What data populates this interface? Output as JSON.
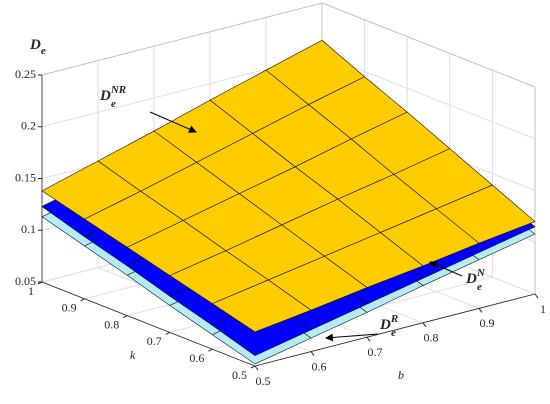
{
  "chart_data": {
    "type": "surface3d",
    "xlabel": "b",
    "ylabel": "k",
    "zlabel": {
      "base": "D",
      "sub": "e"
    },
    "x": [
      0.5,
      0.6,
      0.7,
      0.8,
      0.9,
      1
    ],
    "y": [
      0.5,
      0.6,
      0.7,
      0.8,
      0.9,
      1
    ],
    "xlim": [
      0.5,
      1
    ],
    "ylim": [
      0.5,
      1
    ],
    "zlim": [
      0.05,
      0.25
    ],
    "xticks": [
      0.5,
      0.6,
      0.7,
      0.8,
      0.9,
      1
    ],
    "yticks": [
      0.5,
      0.6,
      0.7,
      0.8,
      0.9,
      1
    ],
    "zticks": [
      0.05,
      0.1,
      0.15,
      0.2,
      0.25
    ],
    "grid": true,
    "series": [
      {
        "label": {
          "base": "D",
          "sub": "e",
          "sup": "R"
        },
        "color": "#b3ecf7",
        "z": [
          [
            0.052,
            0.063,
            0.074,
            0.086,
            0.097,
            0.108
          ],
          [
            0.064,
            0.076,
            0.088,
            0.099,
            0.111,
            0.122
          ],
          [
            0.076,
            0.088,
            0.101,
            0.113,
            0.125,
            0.137
          ],
          [
            0.089,
            0.101,
            0.114,
            0.126,
            0.139,
            0.151
          ],
          [
            0.101,
            0.114,
            0.127,
            0.14,
            0.153,
            0.166
          ],
          [
            0.113,
            0.126,
            0.14,
            0.153,
            0.167,
            0.18
          ]
        ]
      },
      {
        "label": {
          "base": "D",
          "sub": "e",
          "sup": "N"
        },
        "color": "#0000ff",
        "z": [
          [
            0.06,
            0.071,
            0.082,
            0.093,
            0.104,
            0.115
          ],
          [
            0.073,
            0.084,
            0.096,
            0.107,
            0.119,
            0.13
          ],
          [
            0.085,
            0.097,
            0.109,
            0.121,
            0.133,
            0.145
          ],
          [
            0.098,
            0.11,
            0.123,
            0.135,
            0.148,
            0.16
          ],
          [
            0.11,
            0.123,
            0.136,
            0.149,
            0.162,
            0.175
          ],
          [
            0.123,
            0.136,
            0.15,
            0.163,
            0.177,
            0.19
          ]
        ]
      },
      {
        "label": {
          "base": "D",
          "sub": "e",
          "sup": "NR"
        },
        "color": "#ffcc00",
        "z": [
          [
            0.083,
            0.09,
            0.098,
            0.105,
            0.113,
            0.12
          ],
          [
            0.094,
            0.103,
            0.112,
            0.121,
            0.13,
            0.139
          ],
          [
            0.105,
            0.115,
            0.126,
            0.137,
            0.147,
            0.158
          ],
          [
            0.116,
            0.128,
            0.14,
            0.152,
            0.165,
            0.177
          ],
          [
            0.127,
            0.14,
            0.154,
            0.168,
            0.182,
            0.195
          ],
          [
            0.138,
            0.153,
            0.168,
            0.184,
            0.199,
            0.214
          ]
        ]
      }
    ]
  }
}
